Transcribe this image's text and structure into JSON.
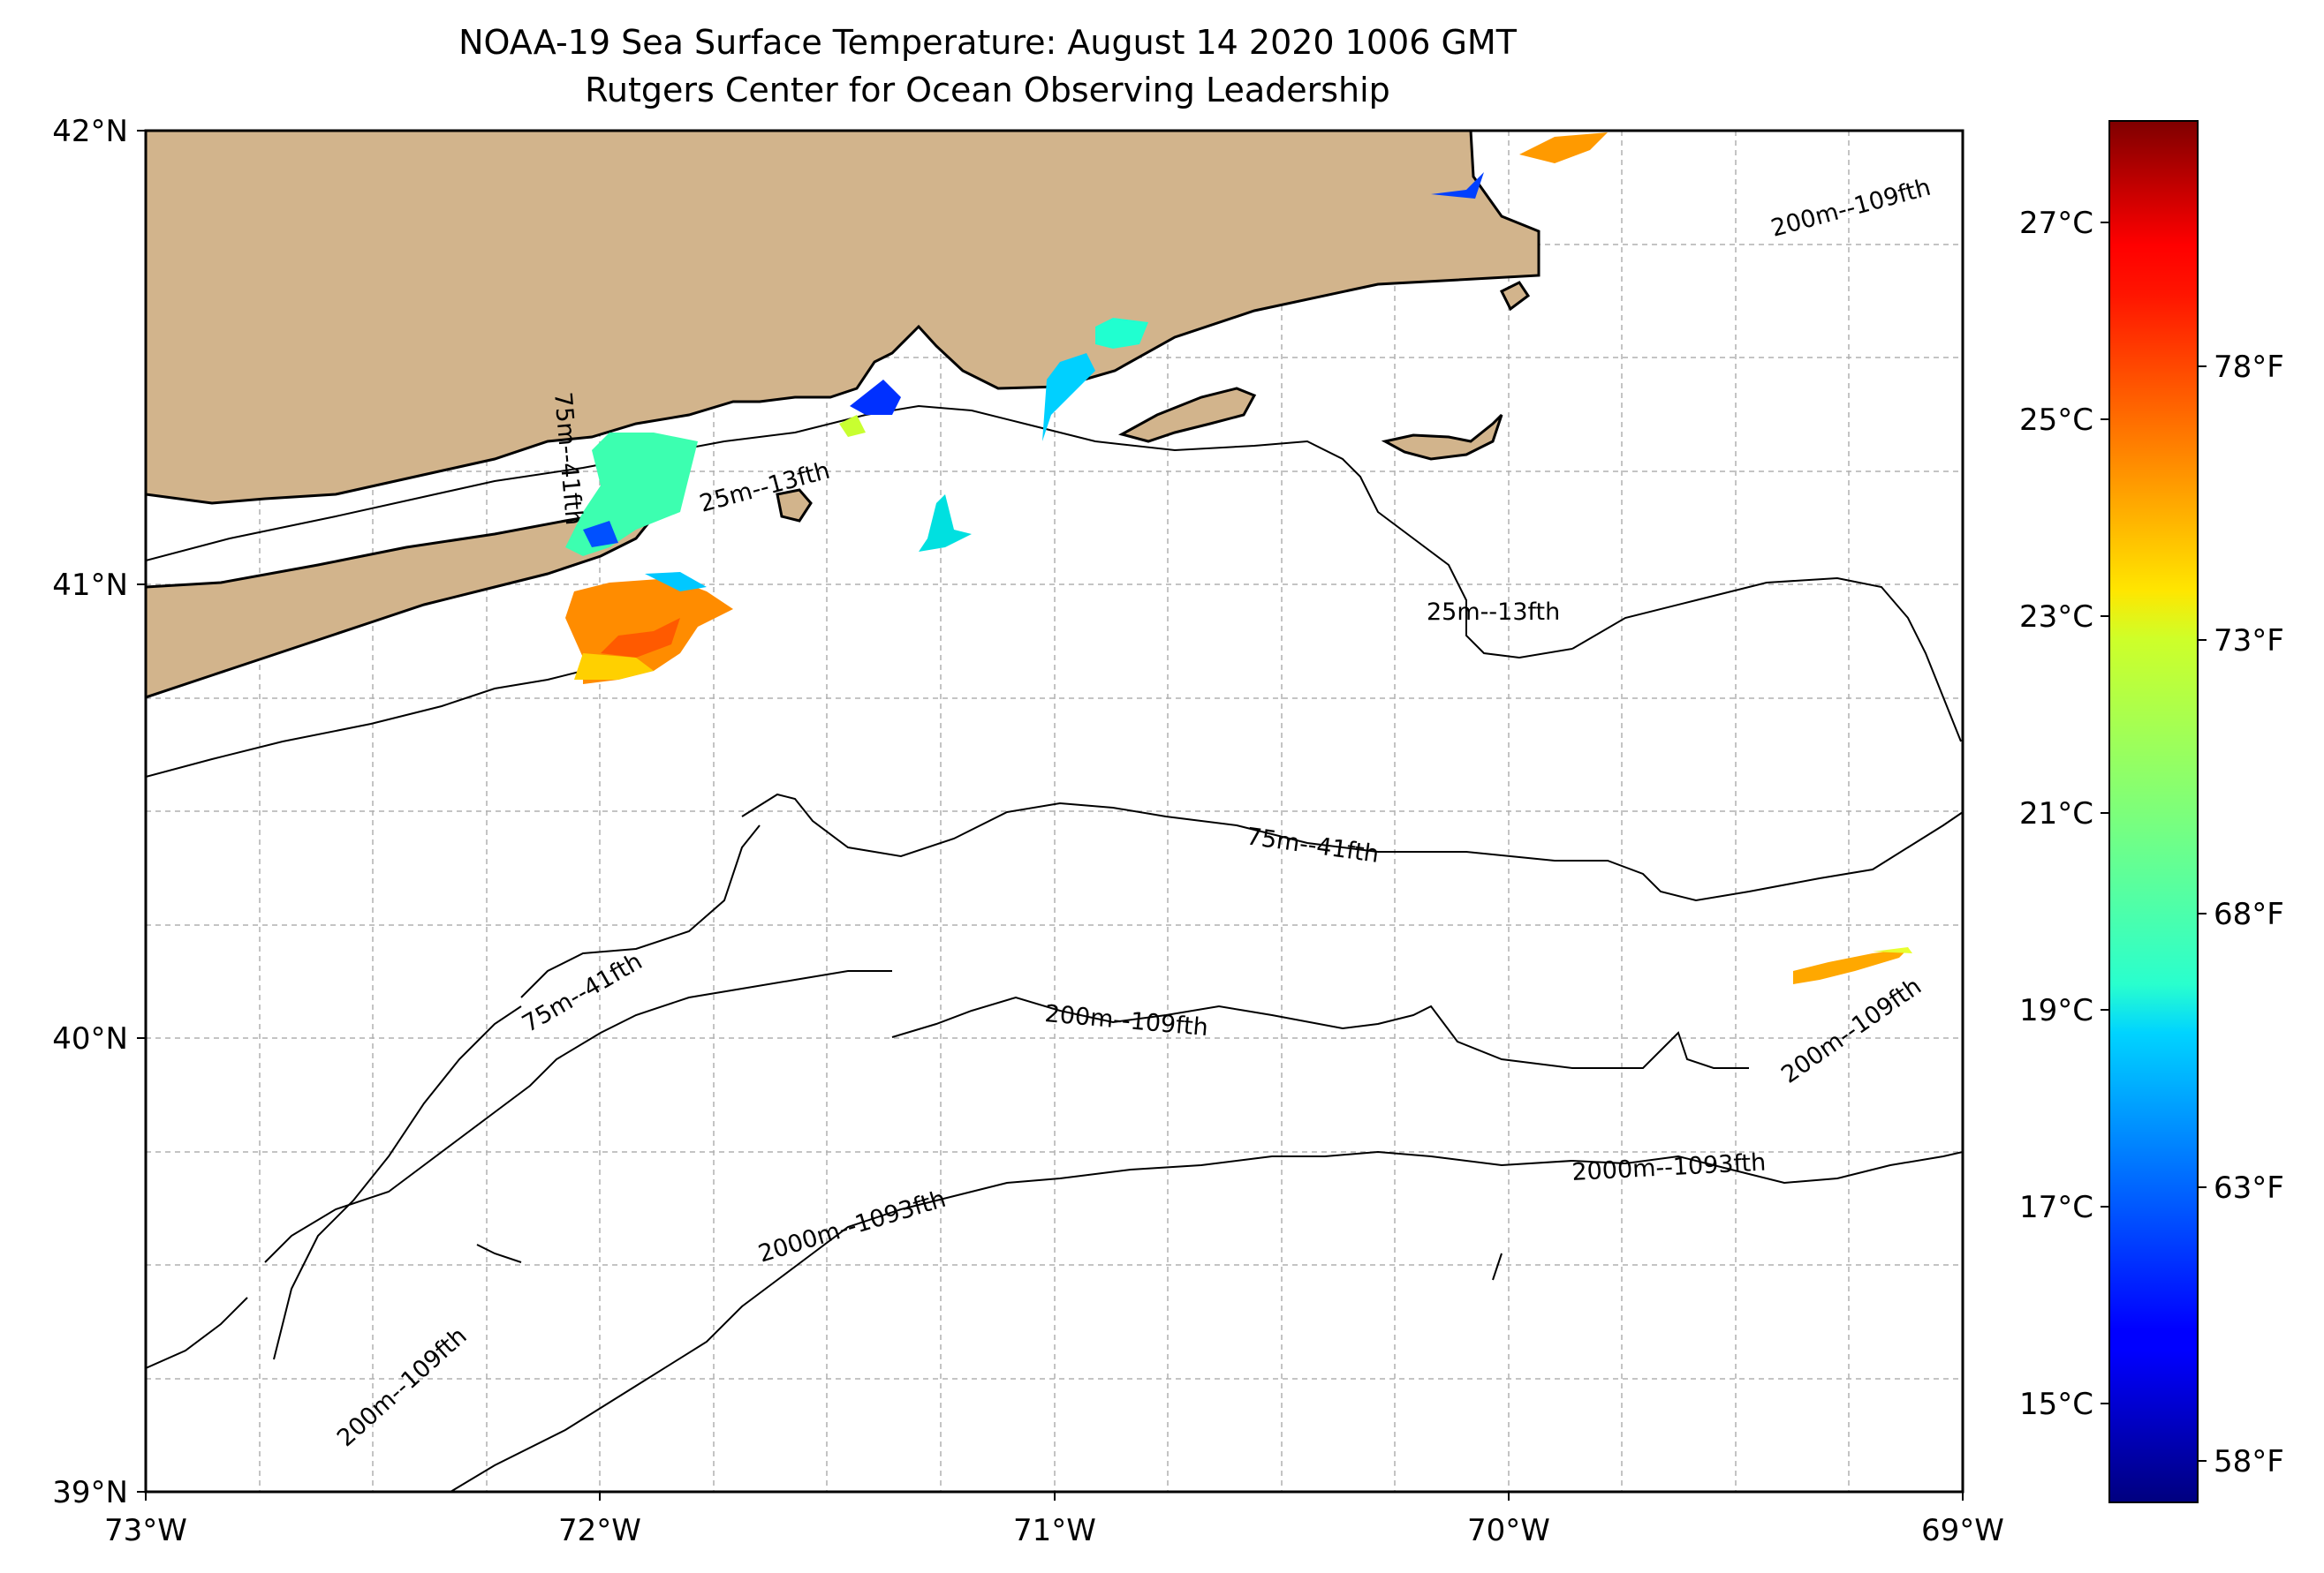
{
  "title": {
    "line1": "NOAA-19 Sea Surface Temperature: August 14 2020 1006 GMT",
    "line2": "Rutgers Center for Ocean Observing Leadership"
  },
  "map": {
    "lon_range": [
      -73,
      -69
    ],
    "lat_range": [
      39,
      42
    ],
    "xticks": [
      "73°W",
      "72°W",
      "71°W",
      "70°W",
      "69°W"
    ],
    "yticks": [
      "42°N",
      "41°N",
      "40°N",
      "39°N"
    ],
    "grid": "dashed, every 0.25°"
  },
  "contour_labels": [
    {
      "text": "200m--109fth"
    },
    {
      "text": "75m--41fth"
    },
    {
      "text": "25m--13fth"
    },
    {
      "text": "25m--13fth"
    },
    {
      "text": "75m--41fth"
    },
    {
      "text": "75m--41fth"
    },
    {
      "text": "200m--109fth"
    },
    {
      "text": "200m--109fth"
    },
    {
      "text": "2000m--1093fth"
    },
    {
      "text": "2000m--1093fth"
    },
    {
      "text": "200m--109fth"
    }
  ],
  "colorbar": {
    "colormap": "jet",
    "celsius_labels": [
      "27°C",
      "25°C",
      "23°C",
      "21°C",
      "19°C",
      "17°C",
      "15°C"
    ],
    "fahrenheit_labels": [
      "78°F",
      "73°F",
      "68°F",
      "63°F",
      "58°F"
    ]
  },
  "colors": {
    "land": "#d2b48c",
    "coast": "#000000",
    "grid": "#b0b0b0"
  }
}
